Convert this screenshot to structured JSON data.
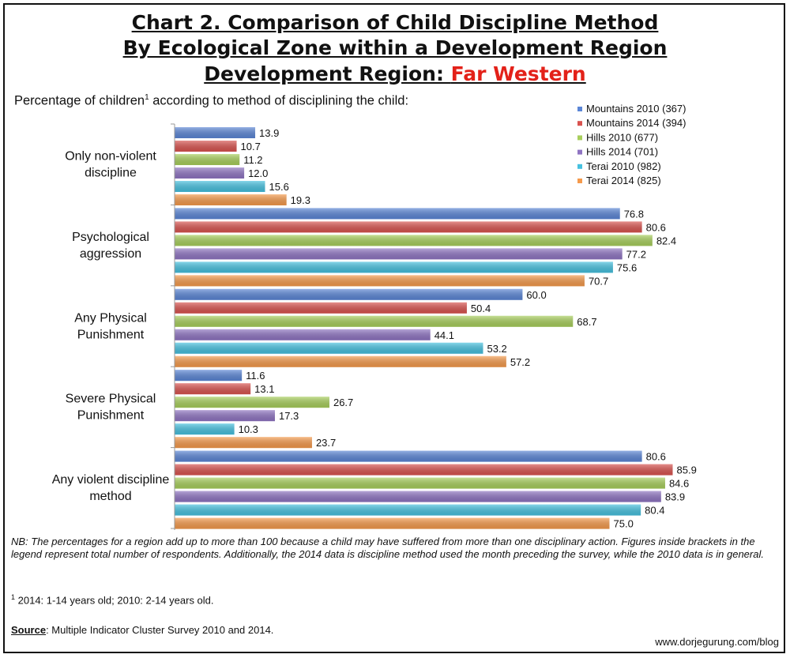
{
  "title": {
    "line1": "Chart 2. Comparison of Child Discipline Method",
    "line2": "By Ecological Zone within a Development Region",
    "line3_prefix": "Development Region: ",
    "line3_region": "Far Western"
  },
  "subtitle": {
    "text_before": "Percentage of children",
    "superscript": "1",
    "text_after": " according to method of disciplining the child:"
  },
  "colors": {
    "region_highlight": "#e32119",
    "series": [
      "#5b86d6",
      "#d9534f",
      "#a8cf5c",
      "#8f74c2",
      "#46c1df",
      "#f59a4c"
    ]
  },
  "chart_data": {
    "type": "bar",
    "orientation": "horizontal",
    "categories": [
      [
        "Only non-violent",
        "discipline"
      ],
      [
        "Psychological",
        "aggression"
      ],
      [
        "Any Physical",
        "Punishment"
      ],
      [
        "Severe Physical",
        "Punishment"
      ],
      [
        "Any violent discipline",
        "method"
      ]
    ],
    "series": [
      {
        "name": "Mountains 2010 (367)",
        "values": [
          13.9,
          76.8,
          60.0,
          11.6,
          80.6
        ]
      },
      {
        "name": "Mountains 2014 (394)",
        "values": [
          10.7,
          80.6,
          50.4,
          13.1,
          85.9
        ]
      },
      {
        "name": "Hills 2010 (677)",
        "values": [
          11.2,
          82.4,
          68.7,
          26.7,
          84.6
        ]
      },
      {
        "name": "Hills 2014 (701)",
        "values": [
          12.0,
          77.2,
          44.1,
          17.3,
          83.9
        ]
      },
      {
        "name": "Terai 2010 (982)",
        "values": [
          15.6,
          75.6,
          53.2,
          10.3,
          80.4
        ]
      },
      {
        "name": "Terai 2014 (825)",
        "values": [
          19.3,
          70.7,
          57.2,
          23.7,
          75.0
        ]
      }
    ],
    "xlim": [
      0,
      100
    ],
    "value_format": "1 decimal",
    "legend_position": "top-right",
    "grid": false
  },
  "notes": "NB: The percentages for a region add up to more than 100 because a child may have suffered from more than one disciplinary action. Figures inside brackets in the legend represent total number of respondents. Additionally, the 2014 data is discipline method used the month preceding the survey, while the 2010 data is in general.",
  "footnote": {
    "marker": "1",
    "text": " 2014: 1-14 years old; 2010: 2-14 years old."
  },
  "source": {
    "label": "Source",
    "text": ": Multiple Indicator Cluster Survey 2010 and 2014."
  },
  "website": "www.dorjegurung.com/blog"
}
